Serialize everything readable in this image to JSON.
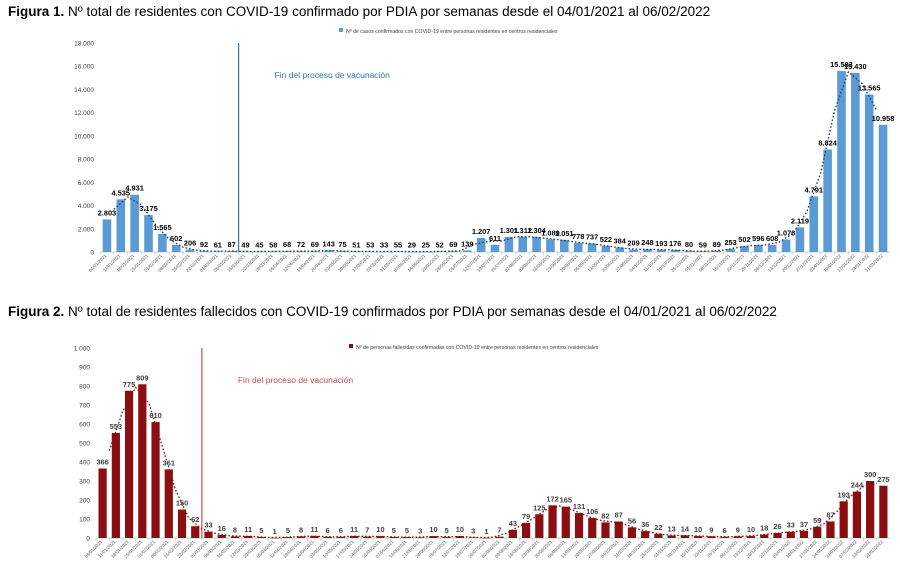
{
  "figures": [
    {
      "label": "Figura 1.",
      "text": "Nº total de residentes con COVID-19 confirmado por PDIA por semanas desde el 04/01/2021 al 06/02/2022"
    },
    {
      "label": "Figura 2.",
      "text": "Nº total de residentes fallecidos con COVID-19 confirmados por PDIA por semanas desde el 04/01/2021 al 06/02/2022"
    }
  ],
  "chart_data": [
    {
      "type": "bar",
      "title": "Nº total de residentes con COVID-19 confirmado por PDIA por semanas desde el 04/01/2021 al 06/02/2022",
      "legend": "Nº de casos confirmados con COVID-19 entre personas residentes en centros residenciales",
      "legend_position": "top-center",
      "annotation": "Fin del proceso de vacunación",
      "annotation_line_after_index": 9,
      "color": "#5b9bd5",
      "line_color": "#1f3864",
      "label_color": "#000000",
      "ylim": [
        0,
        18000
      ],
      "yticks": [
        0,
        2000,
        4000,
        6000,
        8000,
        10000,
        12000,
        14000,
        16000,
        18000
      ],
      "ytick_labels": [
        "0",
        "2.000",
        "4.000",
        "6.000",
        "8.000",
        "10.000",
        "12.000",
        "14.000",
        "16.000",
        "18.000"
      ],
      "values": [
        2803,
        4535,
        4931,
        3175,
        1565,
        602,
        206,
        92,
        61,
        87,
        49,
        45,
        58,
        68,
        72,
        69,
        143,
        75,
        51,
        53,
        33,
        55,
        29,
        25,
        52,
        69,
        139,
        1207,
        611,
        1301,
        1312,
        1304,
        1089,
        1051,
        778,
        737,
        522,
        384,
        209,
        248,
        193,
        176,
        80,
        59,
        89,
        253,
        502,
        596,
        608,
        1076,
        2119,
        4791,
        8824,
        15583,
        15430,
        13565,
        10958
      ],
      "data_labels": [
        "2.803",
        "4.535",
        "4.931",
        "3.175",
        "1.565",
        "602",
        "206",
        "92",
        "61",
        "87",
        "49",
        "45",
        "58",
        "68",
        "72",
        "69",
        "143",
        "75",
        "51",
        "53",
        "33",
        "55",
        "29",
        "25",
        "52",
        "69",
        "139",
        "1.207",
        "611",
        "1.301",
        "1.312",
        "1.304",
        "1.089",
        "1.051",
        "778",
        "737",
        "522",
        "384",
        "209",
        "248",
        "193",
        "176",
        "80",
        "59",
        "89",
        "253",
        "502",
        "596",
        "608",
        "1.076",
        "2.119",
        "4.791",
        "8.824",
        "15.583",
        "15.430",
        "13.565",
        "10.958"
      ]
    },
    {
      "type": "bar",
      "title": "Nº total de residentes fallecidos con COVID-19 confirmados por PDIA por semanas desde el 04/01/2021 al 06/02/2022",
      "legend": "Nº de personas fallecidas confirmadas con COVID-19 entre personas residentes en centros residenciales",
      "legend_position": "top-center",
      "annotation": "Fin del proceso de vacunación",
      "annotation_line_after_index": 7,
      "color": "#8b0e12",
      "line_color": "#8b0e12",
      "label_color": "#404040",
      "ylim": [
        0,
        1000
      ],
      "yticks": [
        0,
        100,
        200,
        300,
        400,
        500,
        600,
        700,
        800,
        900,
        1000
      ],
      "ytick_labels": [
        "0",
        "100",
        "200",
        "300",
        "400",
        "500",
        "600",
        "700",
        "800",
        "900",
        "1 000"
      ],
      "values": [
        366,
        553,
        775,
        809,
        610,
        361,
        150,
        62,
        33,
        16,
        8,
        11,
        5,
        1,
        5,
        8,
        11,
        6,
        6,
        11,
        7,
        10,
        5,
        5,
        3,
        10,
        5,
        10,
        3,
        1,
        7,
        43,
        79,
        125,
        172,
        165,
        131,
        106,
        82,
        87,
        56,
        36,
        22,
        13,
        14,
        10,
        9,
        6,
        9,
        10,
        18,
        26,
        33,
        37,
        59,
        87,
        193,
        244,
        300,
        275
      ],
      "data_labels": [
        "366",
        "553",
        "775",
        "809",
        "610",
        "361",
        "150",
        "62",
        "33",
        "16",
        "8",
        "11",
        "5",
        "1",
        "5",
        "8",
        "11",
        "6",
        "6",
        "11",
        "7",
        "10",
        "5",
        "5",
        "3",
        "10",
        "5",
        "10",
        "3",
        "1",
        "7",
        "43",
        "79",
        "125",
        "172",
        "165",
        "131",
        "106",
        "82",
        "87",
        "56",
        "36",
        "22",
        "13",
        "14",
        "10",
        "9",
        "6",
        "9",
        "10",
        "18",
        "26",
        "33",
        "37",
        "59",
        "87",
        "193",
        "244",
        "300",
        "275"
      ]
    }
  ]
}
